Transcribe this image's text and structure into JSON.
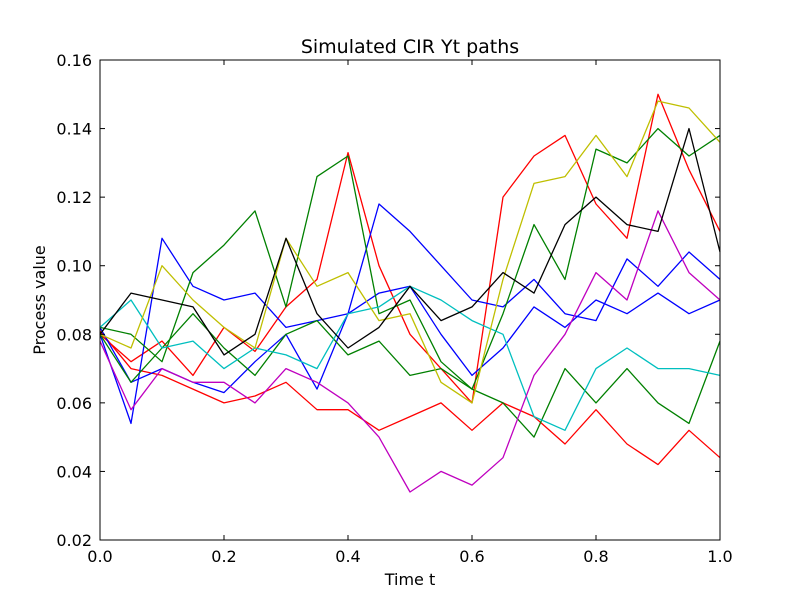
{
  "chart_data": {
    "type": "line",
    "title": "Simulated CIR Yt paths",
    "xlabel": "Time t",
    "ylabel": "Process value",
    "xlim": [
      0.0,
      1.0
    ],
    "ylim": [
      0.02,
      0.16
    ],
    "grid": false,
    "x_ticks": [
      "0.0",
      "0.2",
      "0.4",
      "0.6",
      "0.8",
      "1.0"
    ],
    "y_ticks": [
      "0.02",
      "0.04",
      "0.06",
      "0.08",
      "0.10",
      "0.12",
      "0.14",
      "0.16"
    ],
    "x": [
      0.0,
      0.05,
      0.1,
      0.15,
      0.2,
      0.25,
      0.3,
      0.35,
      0.4,
      0.45,
      0.5,
      0.55,
      0.6,
      0.65,
      0.7,
      0.75,
      0.8,
      0.85,
      0.9,
      0.95,
      1.0
    ],
    "series": [
      {
        "color": "#ff0000",
        "values": [
          0.08,
          0.072,
          0.078,
          0.068,
          0.082,
          0.075,
          0.088,
          0.096,
          0.133,
          0.1,
          0.08,
          0.07,
          0.06,
          0.12,
          0.132,
          0.138,
          0.118,
          0.108,
          0.15,
          0.128,
          0.11
        ]
      },
      {
        "color": "#ff0000",
        "values": [
          0.081,
          0.07,
          0.068,
          0.064,
          0.06,
          0.062,
          0.066,
          0.058,
          0.058,
          0.052,
          0.056,
          0.06,
          0.052,
          0.06,
          0.056,
          0.048,
          0.058,
          0.048,
          0.042,
          0.052,
          0.044
        ]
      },
      {
        "color": "#0000ff",
        "values": [
          0.08,
          0.054,
          0.108,
          0.094,
          0.09,
          0.092,
          0.082,
          0.084,
          0.086,
          0.118,
          0.11,
          0.1,
          0.09,
          0.088,
          0.096,
          0.086,
          0.084,
          0.102,
          0.094,
          0.104,
          0.096
        ]
      },
      {
        "color": "#0000ff",
        "values": [
          0.082,
          0.066,
          0.07,
          0.066,
          0.063,
          0.072,
          0.08,
          0.064,
          0.086,
          0.092,
          0.094,
          0.08,
          0.068,
          0.076,
          0.088,
          0.082,
          0.09,
          0.086,
          0.092,
          0.086,
          0.09
        ]
      },
      {
        "color": "#008000",
        "values": [
          0.082,
          0.08,
          0.072,
          0.098,
          0.106,
          0.116,
          0.088,
          0.126,
          0.132,
          0.086,
          0.09,
          0.072,
          0.064,
          0.086,
          0.112,
          0.096,
          0.134,
          0.13,
          0.14,
          0.132,
          0.138
        ]
      },
      {
        "color": "#008000",
        "values": [
          0.08,
          0.066,
          0.076,
          0.086,
          0.076,
          0.068,
          0.08,
          0.084,
          0.074,
          0.078,
          0.068,
          0.07,
          0.064,
          0.06,
          0.05,
          0.07,
          0.06,
          0.07,
          0.06,
          0.054,
          0.078
        ]
      },
      {
        "color": "#00bfbf",
        "values": [
          0.082,
          0.09,
          0.076,
          0.078,
          0.07,
          0.076,
          0.074,
          0.07,
          0.086,
          0.088,
          0.094,
          0.09,
          0.084,
          0.08,
          0.056,
          0.052,
          0.07,
          0.076,
          0.07,
          0.07,
          0.068
        ]
      },
      {
        "color": "#bf00bf",
        "values": [
          0.078,
          0.058,
          0.07,
          0.066,
          0.066,
          0.06,
          0.07,
          0.066,
          0.06,
          0.05,
          0.034,
          0.04,
          0.036,
          0.044,
          0.068,
          0.08,
          0.098,
          0.09,
          0.116,
          0.098,
          0.09
        ]
      },
      {
        "color": "#bfbf00",
        "values": [
          0.08,
          0.076,
          0.1,
          0.09,
          0.082,
          0.076,
          0.108,
          0.094,
          0.098,
          0.084,
          0.086,
          0.066,
          0.06,
          0.096,
          0.124,
          0.126,
          0.138,
          0.126,
          0.148,
          0.146,
          0.136
        ]
      },
      {
        "color": "#000000",
        "values": [
          0.08,
          0.092,
          0.09,
          0.088,
          0.074,
          0.08,
          0.108,
          0.086,
          0.076,
          0.082,
          0.094,
          0.084,
          0.088,
          0.098,
          0.092,
          0.112,
          0.12,
          0.112,
          0.11,
          0.14,
          0.104
        ]
      }
    ]
  }
}
